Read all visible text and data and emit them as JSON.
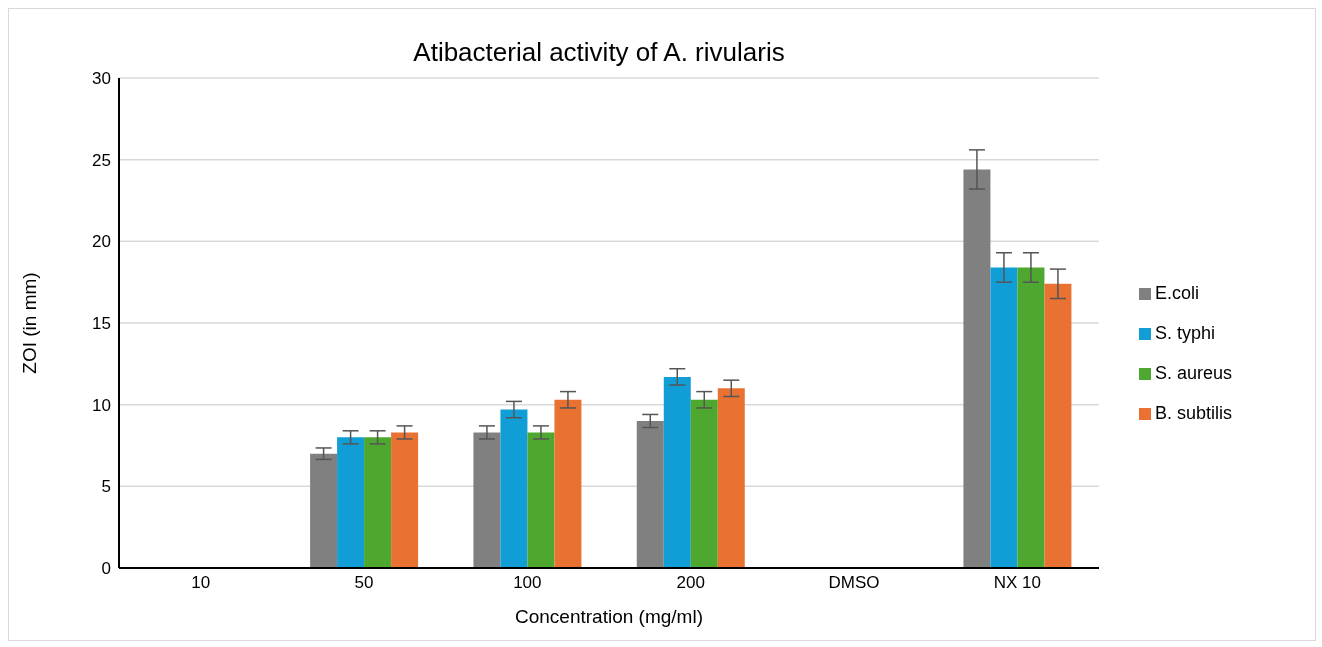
{
  "chart_data": {
    "type": "bar",
    "title": "Atibacterial activity of A. rivularis",
    "xlabel": "Concentration (mg/ml)",
    "ylabel": "ZOI (in mm)",
    "categories": [
      "10",
      "50",
      "100",
      "200",
      "DMSO",
      "NX 10"
    ],
    "series": [
      {
        "name": "E.coli",
        "color": "#808080",
        "values": [
          0,
          7.0,
          8.3,
          9.0,
          0,
          24.4
        ],
        "errors": [
          null,
          0.35,
          0.4,
          0.4,
          null,
          1.2
        ]
      },
      {
        "name": "S. typhi",
        "color": "#119ed6",
        "values": [
          0,
          8.0,
          9.7,
          11.7,
          0,
          18.4
        ],
        "errors": [
          null,
          0.4,
          0.5,
          0.5,
          null,
          0.9
        ]
      },
      {
        "name": "S. aureus",
        "color": "#4ea72e",
        "values": [
          0,
          8.0,
          8.3,
          10.3,
          0,
          18.4
        ],
        "errors": [
          null,
          0.4,
          0.4,
          0.5,
          null,
          0.9
        ]
      },
      {
        "name": "B. subtilis",
        "color": "#e97132",
        "values": [
          0,
          8.3,
          10.3,
          11.0,
          0,
          17.4
        ],
        "errors": [
          null,
          0.4,
          0.5,
          0.5,
          null,
          0.9
        ]
      }
    ],
    "ylim": [
      0,
      30
    ],
    "yticks": [
      0,
      5,
      10,
      15,
      20,
      25,
      30
    ],
    "grid": "y",
    "legend": "right"
  }
}
